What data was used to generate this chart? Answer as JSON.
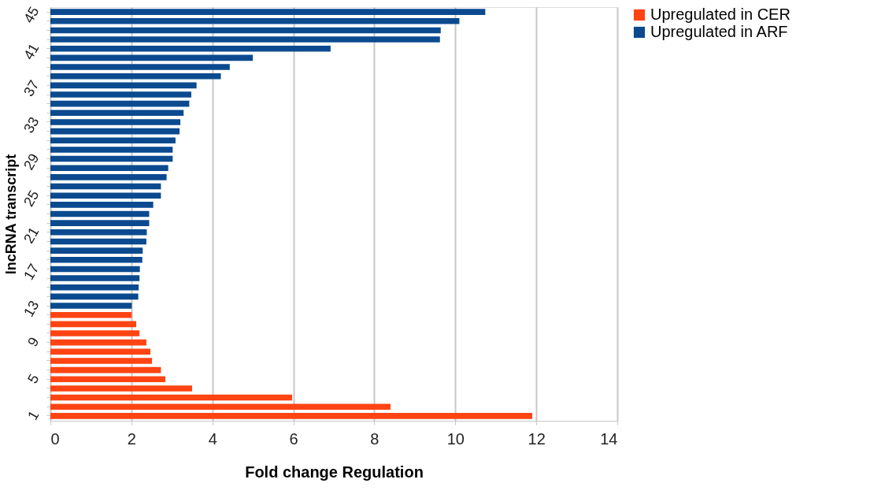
{
  "chart_data": {
    "type": "bar",
    "orientation": "horizontal",
    "xlabel": "Fold change Regulation",
    "ylabel": "lncRNA transcript",
    "categories": [
      "45",
      null,
      null,
      null,
      "41",
      null,
      null,
      null,
      "37",
      null,
      null,
      null,
      "33",
      null,
      null,
      null,
      "29",
      null,
      null,
      null,
      "25",
      null,
      null,
      null,
      "21",
      null,
      null,
      null,
      "17",
      null,
      null,
      null,
      "13",
      null,
      null,
      null,
      "9",
      null,
      null,
      null,
      "5",
      null,
      null,
      null,
      "1"
    ],
    "series": [
      {
        "name": "Upregulated in CER",
        "color": "#ff4413",
        "values": [
          null,
          null,
          null,
          null,
          null,
          null,
          null,
          null,
          null,
          null,
          null,
          null,
          null,
          null,
          null,
          null,
          null,
          null,
          null,
          null,
          null,
          null,
          null,
          null,
          null,
          null,
          null,
          null,
          null,
          null,
          null,
          null,
          null,
          2.01,
          2.12,
          2.2,
          2.37,
          2.47,
          2.51,
          2.73,
          2.84,
          3.5,
          5.97,
          8.4,
          11.9
        ]
      },
      {
        "name": "Upregulated in ARF",
        "color": "#0b4a8f",
        "values": [
          10.74,
          10.1,
          9.64,
          9.62,
          6.92,
          5.0,
          4.43,
          4.21,
          3.61,
          3.48,
          3.43,
          3.29,
          3.21,
          3.19,
          3.09,
          3.02,
          3.02,
          2.91,
          2.87,
          2.73,
          2.73,
          2.54,
          2.44,
          2.44,
          2.38,
          2.37,
          2.28,
          2.27,
          2.21,
          2.2,
          2.18,
          2.17,
          2.01,
          null,
          null,
          null,
          null,
          null,
          null,
          null,
          null,
          null,
          null,
          null,
          null
        ]
      }
    ],
    "xlim": [
      0,
      14
    ],
    "xticks": [
      0,
      2,
      4,
      6,
      8,
      10,
      12,
      14
    ],
    "grid": "x",
    "legend": "right"
  }
}
